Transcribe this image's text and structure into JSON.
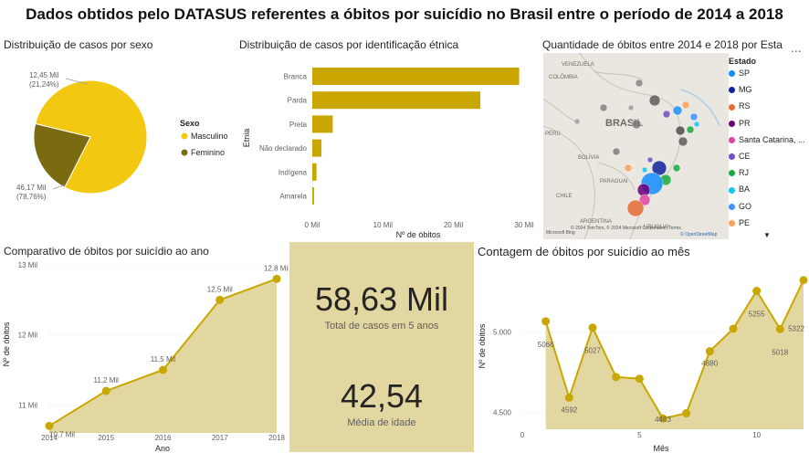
{
  "title": "Dados obtidos pelo DATASUS referentes a óbitos por suicídio no Brasil entre o período de 2014 a 2018",
  "colors": {
    "gold": "#c9a700",
    "yellow": "#f2c811",
    "olive": "#7a6a12",
    "kpi_bg": "#e3d7a1"
  },
  "pie": {
    "title": "Distribuição de casos por sexo",
    "legend_title": "Sexo",
    "label_m": "46,17 Mil",
    "label_m_pct": "(78,76%)",
    "label_f": "12,45 Mil",
    "label_f_pct": "(21,24%)"
  },
  "bar": {
    "title": "Distribuição de casos por identificação étnica",
    "ylabel": "Etnia",
    "xlabel": "Nº de óbitos",
    "ticks": [
      "0 Mil",
      "10 Mil",
      "20 Mil",
      "30 Mil"
    ]
  },
  "map": {
    "title": "Quantidade de óbitos entre 2014 e 2018 por Esta",
    "legend_title": "Estado",
    "country_label": "BRASIL",
    "labels": [
      "VENEZUELA",
      "COLÔMBIA",
      "PERU",
      "BOLÍVIA",
      "CHILE",
      "ARGENTINA",
      "PARAGUAI",
      "URUGUAI"
    ],
    "copyright": "© 2024 TomTom, © 2024 Microsoft Corporation, Terms",
    "copyright2": "© OpenStreetMap",
    "ms_logo": "Microsoft Bing",
    "more": "...",
    "scroll_arrow": "▼"
  },
  "year": {
    "title": "Comparativo de óbitos por suicídio ao ano",
    "ylabel": "Nº de óbitos",
    "xlabel": "Ano",
    "yticks": [
      "13 Mil",
      "12 Mil",
      "11 Mil"
    ],
    "data_labels": [
      "10,7 Mil",
      "11,2 Mil",
      "11,5 Mil",
      "12,5 Mil",
      "12,8 Mil"
    ]
  },
  "kpi": {
    "total_value": "58,63 Mil",
    "total_label": "Total de casos em 5 anos",
    "age_value": "42,54",
    "age_label": "Média de idade"
  },
  "month": {
    "title": "Contagem de óbitos por suicídio ao mês",
    "ylabel": "Nº de óbitos",
    "xlabel": "Mês",
    "yticks": [
      "5.000",
      "4.500"
    ],
    "xticks": [
      "0",
      "5",
      "10"
    ]
  },
  "chart_data": [
    {
      "type": "pie",
      "title": "Distribuição de casos por sexo",
      "legend_title": "Sexo",
      "categories": [
        "Masculino",
        "Feminino"
      ],
      "values": [
        46.17,
        12.45
      ],
      "percentages": [
        78.76,
        21.24
      ],
      "unit": "Mil",
      "colors": [
        "#f2c811",
        "#7a6a12"
      ],
      "legend": "right"
    },
    {
      "type": "bar",
      "orientation": "horizontal",
      "title": "Distribuição de casos por identificação étnica",
      "xlabel": "Nº de óbitos",
      "ylabel": "Etnia",
      "categories": [
        "Branca",
        "Parda",
        "Preta",
        "Não declarado",
        "Indígena",
        "Amarela"
      ],
      "values": [
        29300,
        23800,
        2900,
        1300,
        600,
        250
      ],
      "xlim": [
        0,
        30000
      ],
      "color": "#c9a700"
    },
    {
      "type": "scatter",
      "title": "Quantidade de óbitos entre 2014 e 2018 por Esta",
      "legend_title": "Estado",
      "series": [
        {
          "name": "SP",
          "color": "#118dff"
        },
        {
          "name": "MG",
          "color": "#12239e"
        },
        {
          "name": "RS",
          "color": "#e66c37"
        },
        {
          "name": "PR",
          "color": "#6b007b"
        },
        {
          "name": "Santa Catarina, ...",
          "color": "#e044a7"
        },
        {
          "name": "CE",
          "color": "#744ec2"
        },
        {
          "name": "RJ",
          "color": "#1aab40"
        },
        {
          "name": "BA",
          "color": "#15c6f4"
        },
        {
          "name": "GO",
          "color": "#4092ff"
        },
        {
          "name": "PE",
          "color": "#ffa058"
        }
      ]
    },
    {
      "type": "area",
      "title": "Comparativo de óbitos por suicídio ao ano",
      "xlabel": "Ano",
      "ylabel": "Nº de óbitos",
      "x": [
        2014,
        2015,
        2016,
        2017,
        2018
      ],
      "values": [
        10.7,
        11.2,
        11.5,
        12.5,
        12.8
      ],
      "data_labels": [
        "10,7 Mil",
        "11,2 Mil",
        "11,5 Mil",
        "12,5 Mil",
        "12,8 Mil"
      ],
      "unit": "Mil",
      "ylim": [
        10.6,
        13.0
      ]
    },
    {
      "type": "area",
      "title": "Contagem de óbitos por suicídio ao mês",
      "xlabel": "Mês",
      "ylabel": "Nº de óbitos",
      "x": [
        1,
        2,
        3,
        4,
        5,
        6,
        7,
        8,
        9,
        10,
        11,
        12
      ],
      "values": [
        5066,
        4592,
        5027,
        4720,
        4710,
        4463,
        4495,
        4880,
        5020,
        5255,
        5018,
        5322
      ],
      "data_labels": {
        "1": "5066",
        "2": "4592",
        "3": "5027",
        "6": "4463",
        "8": "4880",
        "10": "5255",
        "11": "5018",
        "12": "5322"
      },
      "xlim": [
        0,
        12
      ],
      "ylim": [
        4430,
        5360
      ]
    }
  ]
}
